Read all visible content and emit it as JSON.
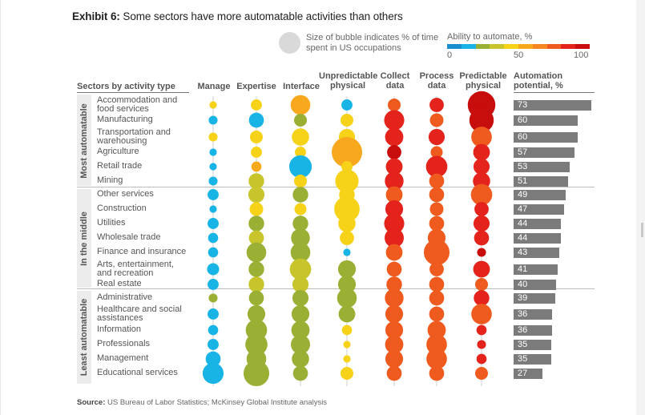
{
  "exhibit": {
    "label": "Exhibit 6:",
    "title": " Some sectors have more automatable activities than others"
  },
  "legend": {
    "bubble_text": "Size of bubble indicates % of time spent in US occupations",
    "scale_title": "Ability to automate, %",
    "scale_min": "0",
    "scale_mid": "50",
    "scale_max": "100",
    "scale_colors": [
      "#1a8fd0",
      "#19b4e6",
      "#9ab035",
      "#c7c52b",
      "#f6d219",
      "#f7a81d",
      "#f58620",
      "#ef5a1e",
      "#e3231c",
      "#c80d0d"
    ]
  },
  "headers": {
    "sectors": "Sectors by activity type",
    "manage": "Manage",
    "expertise": "Expertise",
    "interface": "Interface",
    "unpredictable_1": "Unpredictable",
    "unpredictable_2": "physical",
    "collect_1": "Collect",
    "collect_2": "data",
    "process_1": "Process",
    "process_2": "data",
    "predictable_1": "Predictable",
    "predictable_2": "physical",
    "potential_1": "Automation",
    "potential_2": "potential, %"
  },
  "groups": [
    "Most automatable",
    "In the middle",
    "Least automatable"
  ],
  "source": {
    "label": "Source:",
    "text": " US Bureau of Labor Statistics; McKinsey Global Institute analysis"
  },
  "chart_data": {
    "type": "bubble-matrix with bar",
    "title": "Some sectors have more automatable activities than others",
    "columns": [
      "Manage",
      "Expertise",
      "Interface",
      "Unpredictable physical",
      "Collect data",
      "Process data",
      "Predictable physical"
    ],
    "color_encoding": "Ability to automate, % (0-100)",
    "size_encoding": "% of time spent in US occupations",
    "bar_axis": "Automation potential, %",
    "rows": [
      {
        "group": "Most automatable",
        "sector": [
          "Accommodation and",
          "food services"
        ],
        "potential": 73,
        "cells": [
          {
            "a": 45,
            "t": 1
          },
          {
            "a": 45,
            "t": 4
          },
          {
            "a": 52,
            "t": 18
          },
          {
            "a": 15,
            "t": 4
          },
          {
            "a": 70,
            "t": 6
          },
          {
            "a": 88,
            "t": 8
          },
          {
            "a": 96,
            "t": 40
          }
        ]
      },
      {
        "group": "Most automatable",
        "sector": [
          "Manufacturing"
        ],
        "potential": 60,
        "cells": [
          {
            "a": 10,
            "t": 2
          },
          {
            "a": 15,
            "t": 9
          },
          {
            "a": 20,
            "t": 6
          },
          {
            "a": 40,
            "t": 6
          },
          {
            "a": 80,
            "t": 19
          },
          {
            "a": 75,
            "t": 7
          },
          {
            "a": 92,
            "t": 30
          }
        ]
      },
      {
        "group": "Most automatable",
        "sector": [
          "Transportation and",
          "warehousing"
        ],
        "potential": 60,
        "cells": [
          {
            "a": 40,
            "t": 2
          },
          {
            "a": 40,
            "t": 6
          },
          {
            "a": 40,
            "t": 13
          },
          {
            "a": 40,
            "t": 11
          },
          {
            "a": 80,
            "t": 15
          },
          {
            "a": 85,
            "t": 11
          },
          {
            "a": 78,
            "t": 20
          }
        ]
      },
      {
        "group": "Most automatable",
        "sector": [
          "Agriculture"
        ],
        "potential": 57,
        "cells": [
          {
            "a": 15,
            "t": 1
          },
          {
            "a": 45,
            "t": 4
          },
          {
            "a": 45,
            "t": 4
          },
          {
            "a": 50,
            "t": 50
          },
          {
            "a": 90,
            "t": 8
          },
          {
            "a": 78,
            "t": 5
          },
          {
            "a": 88,
            "t": 12
          }
        ]
      },
      {
        "group": "Most automatable",
        "sector": [
          "Retail trade"
        ],
        "potential": 53,
        "cells": [
          {
            "a": 15,
            "t": 1
          },
          {
            "a": 50,
            "t": 3
          },
          {
            "a": 10,
            "t": 25
          },
          {
            "a": 40,
            "t": 4
          },
          {
            "a": 80,
            "t": 12
          },
          {
            "a": 80,
            "t": 22
          },
          {
            "a": 88,
            "t": 11
          }
        ]
      },
      {
        "group": "Most automatable",
        "sector": [
          "Mining"
        ],
        "potential": 51,
        "cells": [
          {
            "a": 15,
            "t": 2
          },
          {
            "a": 35,
            "t": 10
          },
          {
            "a": 40,
            "t": 6
          },
          {
            "a": 42,
            "t": 27
          },
          {
            "a": 80,
            "t": 16
          },
          {
            "a": 75,
            "t": 9
          },
          {
            "a": 88,
            "t": 13
          }
        ]
      },
      {
        "group": "In the middle",
        "sector": [
          "Other services"
        ],
        "potential": 49,
        "cells": [
          {
            "a": 10,
            "t": 4
          },
          {
            "a": 30,
            "t": 11
          },
          {
            "a": 20,
            "t": 10
          },
          {
            "a": 40,
            "t": 10
          },
          {
            "a": 75,
            "t": 12
          },
          {
            "a": 75,
            "t": 9
          },
          {
            "a": 75,
            "t": 22
          }
        ]
      },
      {
        "group": "In the middle",
        "sector": [
          "Construction"
        ],
        "potential": 47,
        "cells": [
          {
            "a": 15,
            "t": 1
          },
          {
            "a": 40,
            "t": 7
          },
          {
            "a": 40,
            "t": 5
          },
          {
            "a": 40,
            "t": 33
          },
          {
            "a": 80,
            "t": 14
          },
          {
            "a": 75,
            "t": 7
          },
          {
            "a": 88,
            "t": 8
          }
        ]
      },
      {
        "group": "In the middle",
        "sector": [
          "Utilities"
        ],
        "potential": 44,
        "cells": [
          {
            "a": 10,
            "t": 4
          },
          {
            "a": 20,
            "t": 10
          },
          {
            "a": 20,
            "t": 10
          },
          {
            "a": 40,
            "t": 13
          },
          {
            "a": 80,
            "t": 19
          },
          {
            "a": 75,
            "t": 9
          },
          {
            "a": 88,
            "t": 11
          }
        ]
      },
      {
        "group": "In the middle",
        "sector": [
          "Wholesale trade"
        ],
        "potential": 44,
        "cells": [
          {
            "a": 10,
            "t": 3
          },
          {
            "a": 30,
            "t": 9
          },
          {
            "a": 20,
            "t": 16
          },
          {
            "a": 40,
            "t": 8
          },
          {
            "a": 80,
            "t": 17
          },
          {
            "a": 75,
            "t": 14
          },
          {
            "a": 88,
            "t": 9
          }
        ]
      },
      {
        "group": "In the middle",
        "sector": [
          "Finance and insurance"
        ],
        "potential": 43,
        "cells": [
          {
            "a": 10,
            "t": 3
          },
          {
            "a": 20,
            "t": 18
          },
          {
            "a": 20,
            "t": 18
          },
          {
            "a": 10,
            "t": 1
          },
          {
            "a": 70,
            "t": 12
          },
          {
            "a": 78,
            "t": 34
          },
          {
            "a": 90,
            "t": 2
          }
        ]
      },
      {
        "group": "In the middle",
        "sector": [
          "Arts, entertainment,",
          "and recreation"
        ],
        "potential": 41,
        "cells": [
          {
            "a": 10,
            "t": 5
          },
          {
            "a": 20,
            "t": 10
          },
          {
            "a": 30,
            "t": 22
          },
          {
            "a": 20,
            "t": 14
          },
          {
            "a": 75,
            "t": 9
          },
          {
            "a": 75,
            "t": 8
          },
          {
            "a": 88,
            "t": 12
          }
        ]
      },
      {
        "group": "In the middle",
        "sector": [
          "Real estate"
        ],
        "potential": 40,
        "cells": [
          {
            "a": 10,
            "t": 4
          },
          {
            "a": 30,
            "t": 10
          },
          {
            "a": 30,
            "t": 11
          },
          {
            "a": 20,
            "t": 14
          },
          {
            "a": 70,
            "t": 10
          },
          {
            "a": 75,
            "t": 9
          },
          {
            "a": 75,
            "t": 6
          }
        ]
      },
      {
        "group": "Least automatable",
        "sector": [
          "Administrative"
        ],
        "potential": 39,
        "cells": [
          {
            "a": 20,
            "t": 2
          },
          {
            "a": 20,
            "t": 9
          },
          {
            "a": 20,
            "t": 11
          },
          {
            "a": 20,
            "t": 18
          },
          {
            "a": 70,
            "t": 16
          },
          {
            "a": 75,
            "t": 9
          },
          {
            "a": 88,
            "t": 10
          }
        ]
      },
      {
        "group": "Least automatable",
        "sector": [
          "Healthcare and social",
          "assistances"
        ],
        "potential": 36,
        "cells": [
          {
            "a": 10,
            "t": 4
          },
          {
            "a": 20,
            "t": 14
          },
          {
            "a": 20,
            "t": 14
          },
          {
            "a": 20,
            "t": 12
          },
          {
            "a": 70,
            "t": 14
          },
          {
            "a": 75,
            "t": 9
          },
          {
            "a": 70,
            "t": 20
          }
        ]
      },
      {
        "group": "Least automatable",
        "sector": [
          "Information"
        ],
        "potential": 36,
        "cells": [
          {
            "a": 10,
            "t": 3
          },
          {
            "a": 20,
            "t": 22
          },
          {
            "a": 20,
            "t": 15
          },
          {
            "a": 40,
            "t": 3
          },
          {
            "a": 70,
            "t": 14
          },
          {
            "a": 70,
            "t": 15
          },
          {
            "a": 88,
            "t": 3
          }
        ]
      },
      {
        "group": "Least automatable",
        "sector": [
          "Professionals"
        ],
        "potential": 35,
        "cells": [
          {
            "a": 10,
            "t": 4
          },
          {
            "a": 20,
            "t": 24
          },
          {
            "a": 20,
            "t": 17
          },
          {
            "a": 40,
            "t": 1
          },
          {
            "a": 70,
            "t": 15
          },
          {
            "a": 70,
            "t": 20
          },
          {
            "a": 88,
            "t": 2
          }
        ]
      },
      {
        "group": "Least automatable",
        "sector": [
          "Management"
        ],
        "potential": 35,
        "cells": [
          {
            "a": 10,
            "t": 9
          },
          {
            "a": 20,
            "t": 18
          },
          {
            "a": 20,
            "t": 13
          },
          {
            "a": 40,
            "t": 1
          },
          {
            "a": 70,
            "t": 14
          },
          {
            "a": 70,
            "t": 20
          },
          {
            "a": 88,
            "t": 3
          }
        ]
      },
      {
        "group": "Least automatable",
        "sector": [
          "Educational services"
        ],
        "potential": 27,
        "cells": [
          {
            "a": 10,
            "t": 21
          },
          {
            "a": 20,
            "t": 34
          },
          {
            "a": 20,
            "t": 9
          },
          {
            "a": 40,
            "t": 6
          },
          {
            "a": 70,
            "t": 9
          },
          {
            "a": 70,
            "t": 9
          },
          {
            "a": 78,
            "t": 6
          }
        ]
      }
    ]
  }
}
